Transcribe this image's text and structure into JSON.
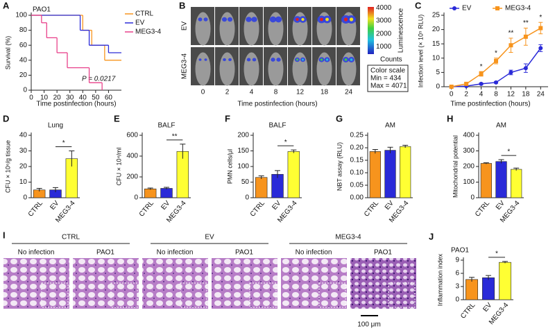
{
  "panels": {
    "B": {
      "label": "B",
      "rows": [
        "EV",
        "MEG3-4"
      ],
      "times": [
        "0",
        "2",
        "4",
        "8",
        "12",
        "18",
        "24"
      ],
      "xlabel": "Time postinfection (hours)",
      "colorbar_title": "Luminescence",
      "colorbar_lim": [
        434,
        4071
      ],
      "colorbar_ticks": [
        1000,
        2000,
        3000,
        4000
      ],
      "units": "Counts",
      "scale_box": [
        "Color scale",
        "Min = 434",
        "Max = 4071"
      ]
    },
    "I": {
      "label": "I",
      "groups": [
        "CTRL",
        "EV",
        "MEG3-4"
      ],
      "conditions": [
        "No infection",
        "PAO1"
      ],
      "scale_bar": "100 μm"
    }
  },
  "chart_data": [
    {
      "panel": "A",
      "type": "step",
      "title": "PAO1",
      "xlabel": "Time postinfection (hours)",
      "ylabel": "Survival (%)",
      "xlim": [
        0,
        70
      ],
      "xticks": [
        0,
        10,
        20,
        30,
        40,
        50,
        60
      ],
      "ylim": [
        0,
        100
      ],
      "yticks": [
        0,
        20,
        40,
        60,
        80,
        100
      ],
      "annotation": "P = 0.0217",
      "series": [
        {
          "name": "CTRL",
          "color": "#f7941d",
          "x": [
            0,
            40,
            47,
            57,
            70
          ],
          "values": [
            100,
            80,
            60,
            40,
            40
          ]
        },
        {
          "name": "EV",
          "color": "#2a2ad8",
          "x": [
            0,
            38,
            45,
            60,
            70
          ],
          "values": [
            100,
            80,
            60,
            50,
            50
          ]
        },
        {
          "name": "MEG3-4",
          "color": "#e8408a",
          "x": [
            0,
            8,
            12,
            20,
            28,
            45,
            55
          ],
          "values": [
            100,
            90,
            70,
            50,
            30,
            10,
            0
          ]
        }
      ]
    },
    {
      "panel": "C",
      "type": "line",
      "xlabel": "Time postinfection (hours)",
      "ylabel": "Infection level (× 10⁵ RLU)",
      "categories": [
        "0",
        "2",
        "4",
        "8",
        "12",
        "18",
        "24"
      ],
      "ylim": [
        0,
        25
      ],
      "yticks": [
        0,
        5,
        10,
        15,
        20,
        25
      ],
      "series": [
        {
          "name": "EV",
          "color": "#2a2ad8",
          "marker": "circle",
          "values": [
            0,
            0.2,
            1,
            1.5,
            5,
            6.5,
            13.5
          ],
          "errors": [
            0,
            0,
            0.3,
            0.3,
            0.8,
            1.5,
            1.2
          ]
        },
        {
          "name": "MEG3-4",
          "color": "#f7941d",
          "marker": "square",
          "values": [
            0,
            1,
            4.5,
            9,
            14.5,
            17.5,
            20.5
          ],
          "errors": [
            0,
            0.3,
            0.8,
            1,
            2.5,
            3,
            2
          ]
        }
      ],
      "annotations": [
        null,
        null,
        "*",
        "*",
        "**",
        "**",
        "*"
      ]
    },
    {
      "panel": "D",
      "type": "bar",
      "title": "Lung",
      "ylabel": "CFU × 10⁶/g tissue",
      "categories": [
        "CTRL",
        "EV",
        "MEG3-4"
      ],
      "colors": [
        "#f7941d",
        "#2a2ad8",
        "#ffff33"
      ],
      "values": [
        5,
        5,
        25
      ],
      "errors": [
        1,
        1.5,
        5
      ],
      "ylim": [
        0,
        40
      ],
      "yticks": [
        0,
        10,
        20,
        30,
        40
      ],
      "significance": "*"
    },
    {
      "panel": "E",
      "type": "bar",
      "title": "BALF",
      "ylabel": "CFU × 10⁴/ml",
      "categories": [
        "CTRL",
        "EV",
        "MEG3-4"
      ],
      "colors": [
        "#f7941d",
        "#2a2ad8",
        "#ffff33"
      ],
      "values": [
        85,
        90,
        445
      ],
      "errors": [
        8,
        10,
        70
      ],
      "ylim": [
        0,
        600
      ],
      "yticks": [
        0,
        200,
        400,
        600
      ],
      "significance": "**"
    },
    {
      "panel": "F",
      "type": "bar",
      "title": "BALF",
      "ylabel": "PMN cells/μl",
      "categories": [
        "CTRL",
        "EV",
        "MEG3-4"
      ],
      "colors": [
        "#f7941d",
        "#2a2ad8",
        "#ffff33"
      ],
      "values": [
        65,
        75,
        148
      ],
      "errors": [
        5,
        12,
        5
      ],
      "ylim": [
        0,
        200
      ],
      "yticks": [
        0,
        50,
        100,
        150,
        200
      ],
      "significance": "*"
    },
    {
      "panel": "G",
      "type": "bar",
      "title": "AM",
      "ylabel": "NBT assay (RLU)",
      "categories": [
        "CTRL",
        "EV",
        "MEG3-4"
      ],
      "colors": [
        "#f7941d",
        "#2a2ad8",
        "#ffff33"
      ],
      "values": [
        0.185,
        0.19,
        0.205
      ],
      "errors": [
        0.008,
        0.012,
        0.005
      ],
      "ylim": [
        0,
        0.25
      ],
      "yticks": [
        {
          "value": 0,
          "label": "0.00"
        },
        {
          "value": 0.05,
          "label": "0.05"
        },
        {
          "value": 0.1,
          "label": "0.10"
        },
        {
          "value": 0.15,
          "label": "0.15"
        },
        {
          "value": 0.2,
          "label": "0.20"
        },
        {
          "value": 0.25,
          "label": "0.25"
        }
      ]
    },
    {
      "panel": "H",
      "type": "bar",
      "title": "AM",
      "ylabel": "Mitochondrial potential",
      "categories": [
        "CTRL",
        "EV",
        "MEG3-4"
      ],
      "colors": [
        "#f7941d",
        "#2a2ad8",
        "#ffff33"
      ],
      "values": [
        220,
        232,
        182
      ],
      "errors": [
        4,
        12,
        8
      ],
      "ylim": [
        0,
        400
      ],
      "yticks": [
        0,
        100,
        200,
        300,
        400
      ],
      "significance": "*"
    },
    {
      "panel": "J",
      "type": "bar",
      "title": "PAO1",
      "ylabel": "Inflammation index",
      "categories": [
        "CTRL",
        "EV",
        "MEG3-4"
      ],
      "colors": [
        "#f7941d",
        "#2a2ad8",
        "#ffff33"
      ],
      "values": [
        4.6,
        5,
        8.5
      ],
      "errors": [
        0.5,
        0.5,
        0.2
      ],
      "ylim": [
        0,
        9
      ],
      "yticks": [
        0,
        3,
        6,
        9
      ],
      "significance": "*"
    }
  ]
}
